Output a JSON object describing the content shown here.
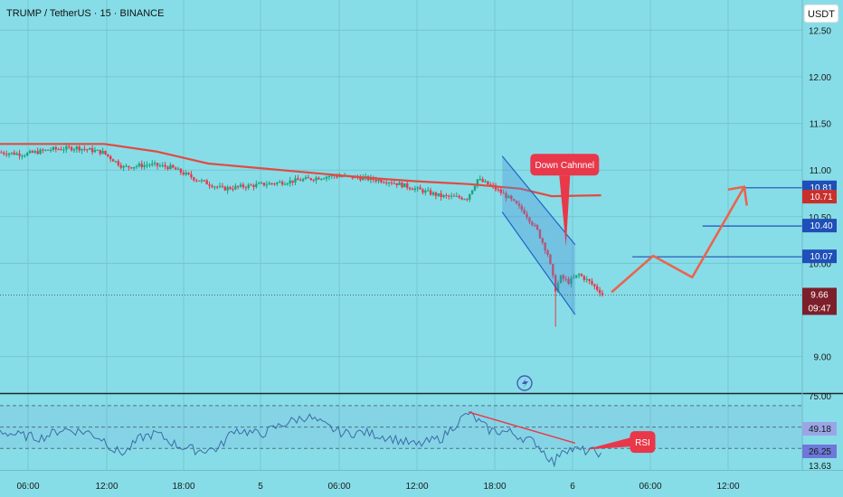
{
  "header": {
    "title": "TRUMP / TetherUS · 15 · BINANCE",
    "currency_badge": "USDT"
  },
  "colors": {
    "background": "#87dde7",
    "grid": "#74c6d0",
    "candle_up": "#1aa37a",
    "candle_down": "#e8384a",
    "moving_average": "#e04b44",
    "channel": "#1f64c8",
    "projection": "#e8654e",
    "level_line": "#1f4fb8",
    "rsi_line": "#3c6aa8"
  },
  "chart_data": [
    {
      "type": "candlestick",
      "symbol": "TRUMP / TetherUS",
      "interval": "15",
      "exchange": "BINANCE",
      "x_ticks": [
        "06:00",
        "12:00",
        "18:00",
        "5",
        "06:00",
        "12:00",
        "18:00",
        "6",
        "06:00",
        "12:00"
      ],
      "y_ticks": [
        "12.50",
        "12.00",
        "11.50",
        "11.00",
        "10.50",
        "10.00",
        "9.00"
      ],
      "ylim": [
        8.6,
        12.6
      ],
      "grid": true,
      "price_path": [
        [
          0,
          11.19
        ],
        [
          10,
          11.17
        ],
        [
          20,
          11.22
        ],
        [
          30,
          11.24
        ],
        [
          40,
          11.19
        ],
        [
          48,
          11.03
        ],
        [
          58,
          11.06
        ],
        [
          66,
          11.03
        ],
        [
          76,
          10.9
        ],
        [
          86,
          10.8
        ],
        [
          96,
          10.83
        ],
        [
          106,
          10.86
        ],
        [
          118,
          10.9
        ],
        [
          128,
          10.94
        ],
        [
          138,
          10.92
        ],
        [
          150,
          10.88
        ],
        [
          160,
          10.8
        ],
        [
          170,
          10.72
        ],
        [
          180,
          10.7
        ],
        [
          184,
          10.9
        ],
        [
          190,
          10.82
        ],
        [
          196,
          10.7
        ],
        [
          202,
          10.55
        ],
        [
          207,
          10.35
        ],
        [
          211,
          10.1
        ],
        [
          214,
          9.72
        ],
        [
          216,
          9.85
        ],
        [
          219,
          9.8
        ],
        [
          223,
          9.88
        ],
        [
          227,
          9.8
        ],
        [
          231,
          9.7
        ]
      ],
      "moving_average": [
        [
          0,
          11.28
        ],
        [
          40,
          11.28
        ],
        [
          60,
          11.2
        ],
        [
          80,
          11.07
        ],
        [
          100,
          11.02
        ],
        [
          120,
          10.97
        ],
        [
          140,
          10.92
        ],
        [
          160,
          10.88
        ],
        [
          180,
          10.85
        ],
        [
          200,
          10.8
        ],
        [
          212,
          10.72
        ],
        [
          231,
          10.73
        ]
      ],
      "down_channel": {
        "upper": [
          [
            193,
            11.15
          ],
          [
            221,
            10.2
          ]
        ],
        "lower": [
          [
            193,
            10.55
          ],
          [
            221,
            9.45
          ]
        ]
      },
      "projection_path": [
        [
          235,
          9.69
        ],
        [
          251,
          10.08
        ],
        [
          266,
          9.85
        ],
        [
          286,
          10.82
        ],
        [
          287,
          10.62
        ]
      ],
      "annotations": [
        {
          "text": "Down Cahnnel",
          "x": 217,
          "y": 11.0,
          "pointer_to": [
            217.5,
            10.18
          ]
        }
      ],
      "levels": [
        {
          "value": 10.81,
          "label": "10.81",
          "x_start": 284
        },
        {
          "value": 10.4,
          "label": "10.40",
          "x_start": 270
        },
        {
          "value": 10.07,
          "label": "10.07",
          "x_start": 243
        }
      ],
      "price_tags": [
        {
          "label": "10.71",
          "value": 10.71,
          "style": "moving-average"
        },
        {
          "label": "9.66",
          "value": 9.66,
          "style": "last-price"
        }
      ],
      "countdown": "09:47",
      "last_price": 9.66
    },
    {
      "type": "line",
      "name": "RSI",
      "ylim": [
        10,
        80
      ],
      "y_ticks": [
        "75.00",
        "49.18",
        "26.25",
        "13.63"
      ],
      "dashed_levels": [
        70,
        50,
        30
      ],
      "values": [
        [
          0,
          46
        ],
        [
          8,
          42
        ],
        [
          16,
          40
        ],
        [
          24,
          48
        ],
        [
          34,
          45
        ],
        [
          40,
          38
        ],
        [
          44,
          28
        ],
        [
          48,
          26
        ],
        [
          54,
          40
        ],
        [
          60,
          44
        ],
        [
          68,
          33
        ],
        [
          76,
          28
        ],
        [
          84,
          30
        ],
        [
          90,
          48
        ],
        [
          100,
          43
        ],
        [
          110,
          54
        ],
        [
          118,
          60
        ],
        [
          126,
          50
        ],
        [
          132,
          44
        ],
        [
          140,
          45
        ],
        [
          150,
          40
        ],
        [
          160,
          33
        ],
        [
          170,
          40
        ],
        [
          176,
          55
        ],
        [
          180,
          63
        ],
        [
          188,
          47
        ],
        [
          196,
          45
        ],
        [
          206,
          35
        ],
        [
          213,
          16
        ],
        [
          216,
          30
        ],
        [
          220,
          29
        ],
        [
          231,
          26
        ]
      ],
      "trendline": [
        [
          180,
          64
        ],
        [
          221,
          35
        ]
      ],
      "annotation": {
        "text": "RSI",
        "x": 248,
        "y": 36,
        "pointer_to": [
          225,
          29
        ]
      },
      "current_tags": [
        {
          "label": "49.18",
          "value": 49.18
        },
        {
          "label": "26.25",
          "value": 26.25
        }
      ]
    }
  ]
}
